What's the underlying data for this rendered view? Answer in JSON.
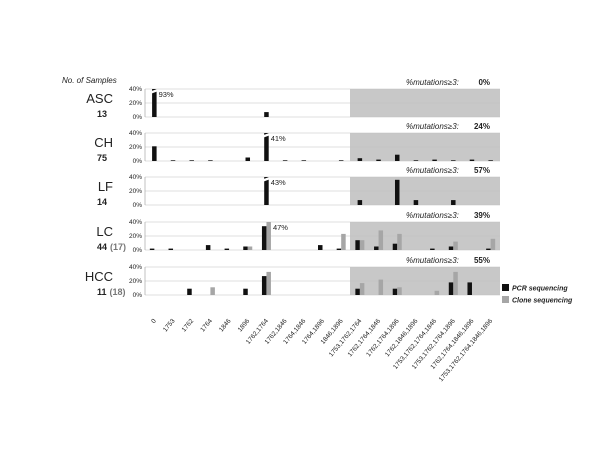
{
  "chart_data": {
    "type": "bar",
    "header_left": "No. of Samples",
    "mutation_label": "%mutations≥3:",
    "categories": [
      "0",
      "1753",
      "1762",
      "1764",
      "1846",
      "1896",
      "1762,1764",
      "1762,1846",
      "1764,1846",
      "1764,1896",
      "1846,1896",
      "1753,1762,1764",
      "1762,1764,1846",
      "1762,1764,1896",
      "1762,1846,1896",
      "1753,1762,1764,1846",
      "1753,1762,1764,1896",
      "1762,1764,1846,1896",
      "1753,1762,1764,1846,1896"
    ],
    "y_ticks": [
      "0%",
      "20%",
      "40%"
    ],
    "ylim": [
      0,
      40
    ],
    "shaded_from_category": "1753,1762,1764",
    "legend": {
      "pcr": "PCR sequencing",
      "clone": "Clone sequencing"
    },
    "colors": {
      "pcr": "#111111",
      "clone": "#a6a6a6",
      "shade": "#c8c8c8",
      "grid": "#bfbfbf"
    },
    "panels": [
      {
        "group": "ASC",
        "n_pcr": "13",
        "n_clone": "",
        "mutation_pct": "0%",
        "pcr": [
          93,
          0,
          0,
          0,
          0,
          0,
          7,
          0,
          0,
          0,
          0,
          0,
          0,
          0,
          0,
          0,
          0,
          0,
          0
        ],
        "clone": null,
        "annotation": {
          "text": "93%",
          "category": "0"
        }
      },
      {
        "group": "CH",
        "n_pcr": "75",
        "n_clone": "",
        "mutation_pct": "24%",
        "pcr": [
          21,
          1,
          1,
          1,
          0,
          5,
          41,
          1,
          1,
          0,
          1,
          4,
          2,
          9,
          1,
          2,
          1,
          2,
          1
        ],
        "clone": null,
        "annotation": {
          "text": "41%",
          "category": "1762,1764"
        }
      },
      {
        "group": "LF",
        "n_pcr": "14",
        "n_clone": "",
        "mutation_pct": "57%",
        "pcr": [
          0,
          0,
          0,
          0,
          0,
          0,
          43,
          0,
          0,
          0,
          0,
          7,
          0,
          36,
          7,
          0,
          7,
          0,
          0
        ],
        "clone": null,
        "annotation": {
          "text": "43%",
          "category": "1762,1764"
        }
      },
      {
        "group": "LC",
        "n_pcr": "44",
        "n_clone": "(17)",
        "mutation_pct": "39%",
        "pcr": [
          2,
          2,
          0,
          7,
          2,
          5,
          34,
          0,
          0,
          7,
          2,
          14,
          5,
          9,
          0,
          2,
          5,
          0,
          2
        ],
        "clone": [
          0,
          0,
          0,
          0,
          0,
          5,
          47,
          0,
          0,
          0,
          23,
          14,
          28,
          23,
          0,
          0,
          12,
          0,
          16
        ],
        "annotation": {
          "text": "47%",
          "category": "1762,1764"
        }
      },
      {
        "group": "HCC",
        "n_pcr": "11",
        "n_clone": "(18)",
        "mutation_pct": "55%",
        "pcr": [
          0,
          0,
          9,
          0,
          0,
          9,
          27,
          0,
          0,
          0,
          0,
          9,
          0,
          9,
          0,
          0,
          18,
          18,
          0
        ],
        "clone": [
          0,
          0,
          0,
          11,
          0,
          0,
          33,
          0,
          0,
          0,
          0,
          17,
          22,
          11,
          0,
          6,
          33,
          0,
          0
        ],
        "annotation": null
      }
    ]
  }
}
